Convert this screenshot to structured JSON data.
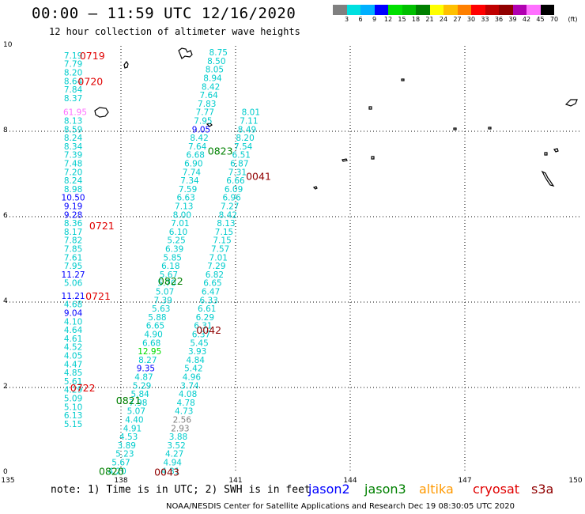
{
  "header": {
    "title": "00:00 – 11:59 UTC 12/16/2020",
    "subtitle": "12 hour collection of altimeter wave heights"
  },
  "colorbar": {
    "colors": [
      "#808080",
      "#00e0e0",
      "#00b0ff",
      "#0000ff",
      "#00e000",
      "#00c000",
      "#008000",
      "#ffff00",
      "#ffc000",
      "#ff8000",
      "#ff0000",
      "#c00000",
      "#900000",
      "#b000b0",
      "#ff70ff",
      "#000000"
    ],
    "labels": [
      "3",
      "6",
      "9",
      "12",
      "15",
      "18",
      "21",
      "24",
      "27",
      "30",
      "33",
      "36",
      "39",
      "42",
      "45",
      "70",
      "(ft)"
    ]
  },
  "axes": {
    "y_ticks": [
      "10",
      "8",
      "6",
      "4",
      "2",
      "0"
    ],
    "x_ticks": [
      "135",
      "138",
      "141",
      "144",
      "147",
      "150"
    ]
  },
  "chart_data": {
    "type": "scatter",
    "xlim": [
      135,
      150
    ],
    "ylim": [
      0,
      10
    ],
    "grid": true,
    "points": [
      {
        "x": 136.75,
        "y": 9.78,
        "v": "7.19",
        "c": "#00cccc"
      },
      {
        "x": 136.75,
        "y": 9.58,
        "v": "7.79",
        "c": "#00cccc"
      },
      {
        "x": 136.75,
        "y": 9.38,
        "v": "8.20",
        "c": "#00cccc"
      },
      {
        "x": 136.75,
        "y": 9.18,
        "v": "8.64",
        "c": "#00cccc"
      },
      {
        "x": 136.75,
        "y": 8.98,
        "v": "7.84",
        "c": "#00cccc"
      },
      {
        "x": 136.75,
        "y": 8.78,
        "v": "8.37",
        "c": "#00cccc"
      },
      {
        "x": 136.8,
        "y": 8.45,
        "v": "61.95",
        "c": "#ff70ff"
      },
      {
        "x": 136.75,
        "y": 8.25,
        "v": "8.13",
        "c": "#00cccc"
      },
      {
        "x": 136.75,
        "y": 8.05,
        "v": "8.59",
        "c": "#00cccc"
      },
      {
        "x": 136.75,
        "y": 7.85,
        "v": "8.24",
        "c": "#00cccc"
      },
      {
        "x": 136.75,
        "y": 7.65,
        "v": "8.34",
        "c": "#00cccc"
      },
      {
        "x": 136.75,
        "y": 7.45,
        "v": "7.39",
        "c": "#00cccc"
      },
      {
        "x": 136.75,
        "y": 7.25,
        "v": "7.48",
        "c": "#00cccc"
      },
      {
        "x": 136.75,
        "y": 7.05,
        "v": "7.20",
        "c": "#00cccc"
      },
      {
        "x": 136.75,
        "y": 6.85,
        "v": "8.24",
        "c": "#00cccc"
      },
      {
        "x": 136.75,
        "y": 6.65,
        "v": "8.98",
        "c": "#00cccc"
      },
      {
        "x": 136.75,
        "y": 6.45,
        "v": "10.50",
        "c": "#0000ff"
      },
      {
        "x": 136.75,
        "y": 6.25,
        "v": "9.19",
        "c": "#0000ff"
      },
      {
        "x": 136.75,
        "y": 6.05,
        "v": "9.28",
        "c": "#0000ff"
      },
      {
        "x": 136.75,
        "y": 5.85,
        "v": "8.36",
        "c": "#00cccc"
      },
      {
        "x": 136.75,
        "y": 5.65,
        "v": "8.17",
        "c": "#00cccc"
      },
      {
        "x": 136.75,
        "y": 5.45,
        "v": "7.82",
        "c": "#00cccc"
      },
      {
        "x": 136.75,
        "y": 5.25,
        "v": "7.85",
        "c": "#00cccc"
      },
      {
        "x": 136.75,
        "y": 5.05,
        "v": "7.61",
        "c": "#00cccc"
      },
      {
        "x": 136.75,
        "y": 4.85,
        "v": "7.95",
        "c": "#00cccc"
      },
      {
        "x": 136.75,
        "y": 4.65,
        "v": "11.27",
        "c": "#0000ff"
      },
      {
        "x": 136.75,
        "y": 4.45,
        "v": "5.06",
        "c": "#00cccc"
      },
      {
        "x": 136.75,
        "y": 4.15,
        "v": "11.21",
        "c": "#0000ff"
      },
      {
        "x": 136.75,
        "y": 3.95,
        "v": "4.68",
        "c": "#00cccc"
      },
      {
        "x": 136.75,
        "y": 3.75,
        "v": "9.04",
        "c": "#0000ff"
      },
      {
        "x": 136.75,
        "y": 3.55,
        "v": "4.10",
        "c": "#00cccc"
      },
      {
        "x": 136.75,
        "y": 3.35,
        "v": "4.64",
        "c": "#00cccc"
      },
      {
        "x": 136.75,
        "y": 3.15,
        "v": "4.61",
        "c": "#00cccc"
      },
      {
        "x": 136.75,
        "y": 2.95,
        "v": "4.52",
        "c": "#00cccc"
      },
      {
        "x": 136.75,
        "y": 2.75,
        "v": "4.05",
        "c": "#00cccc"
      },
      {
        "x": 136.75,
        "y": 2.55,
        "v": "4.47",
        "c": "#00cccc"
      },
      {
        "x": 136.75,
        "y": 2.35,
        "v": "4.85",
        "c": "#00cccc"
      },
      {
        "x": 136.75,
        "y": 2.15,
        "v": "5.61",
        "c": "#00cccc"
      },
      {
        "x": 136.75,
        "y": 1.95,
        "v": "4.29",
        "c": "#00cccc"
      },
      {
        "x": 136.75,
        "y": 1.75,
        "v": "5.09",
        "c": "#00cccc"
      },
      {
        "x": 136.75,
        "y": 1.55,
        "v": "5.10",
        "c": "#00cccc"
      },
      {
        "x": 136.75,
        "y": 1.35,
        "v": "6.13",
        "c": "#00cccc"
      },
      {
        "x": 136.75,
        "y": 1.15,
        "v": "5.15",
        "c": "#00cccc"
      },
      {
        "x": 137.9,
        "y": 0.05,
        "v": "4.20",
        "c": "#00cccc"
      },
      {
        "x": 138.0,
        "y": 0.25,
        "v": "5.67",
        "c": "#00cccc"
      },
      {
        "x": 138.1,
        "y": 0.45,
        "v": "5.23",
        "c": "#00cccc"
      },
      {
        "x": 138.15,
        "y": 0.65,
        "v": "3.89",
        "c": "#00cccc"
      },
      {
        "x": 138.2,
        "y": 0.85,
        "v": "4.53",
        "c": "#00cccc"
      },
      {
        "x": 138.3,
        "y": 1.05,
        "v": "4.91",
        "c": "#00cccc"
      },
      {
        "x": 138.35,
        "y": 1.25,
        "v": "4.40",
        "c": "#00cccc"
      },
      {
        "x": 138.4,
        "y": 1.45,
        "v": "5.07",
        "c": "#00cccc"
      },
      {
        "x": 138.45,
        "y": 1.65,
        "v": "7.98",
        "c": "#00cccc"
      },
      {
        "x": 138.5,
        "y": 1.85,
        "v": "5.84",
        "c": "#00cccc"
      },
      {
        "x": 138.55,
        "y": 2.05,
        "v": "5.29",
        "c": "#00cccc"
      },
      {
        "x": 138.6,
        "y": 2.25,
        "v": "4.87",
        "c": "#00cccc"
      },
      {
        "x": 138.65,
        "y": 2.45,
        "v": "9.35",
        "c": "#0000ff"
      },
      {
        "x": 138.7,
        "y": 2.65,
        "v": "8.27",
        "c": "#00cccc"
      },
      {
        "x": 138.75,
        "y": 2.85,
        "v": "12.95",
        "c": "#00dd00"
      },
      {
        "x": 138.8,
        "y": 3.05,
        "v": "6.68",
        "c": "#00cccc"
      },
      {
        "x": 138.85,
        "y": 3.25,
        "v": "4.90",
        "c": "#00cccc"
      },
      {
        "x": 138.9,
        "y": 3.45,
        "v": "6.65",
        "c": "#00cccc"
      },
      {
        "x": 138.95,
        "y": 3.65,
        "v": "5.88",
        "c": "#00cccc"
      },
      {
        "x": 139.05,
        "y": 3.85,
        "v": "5.63",
        "c": "#00cccc"
      },
      {
        "x": 139.1,
        "y": 4.05,
        "v": "7.39",
        "c": "#00cccc"
      },
      {
        "x": 139.15,
        "y": 4.25,
        "v": "5.07",
        "c": "#00cccc"
      },
      {
        "x": 139.2,
        "y": 4.45,
        "v": "5.70",
        "c": "#00cccc"
      },
      {
        "x": 139.25,
        "y": 4.65,
        "v": "5.67",
        "c": "#00cccc"
      },
      {
        "x": 139.3,
        "y": 4.85,
        "v": "6.18",
        "c": "#00cccc"
      },
      {
        "x": 139.35,
        "y": 5.05,
        "v": "5.85",
        "c": "#00cccc"
      },
      {
        "x": 139.4,
        "y": 5.25,
        "v": "6.39",
        "c": "#00cccc"
      },
      {
        "x": 139.45,
        "y": 5.45,
        "v": "5.25",
        "c": "#00cccc"
      },
      {
        "x": 139.5,
        "y": 5.65,
        "v": "6.10",
        "c": "#00cccc"
      },
      {
        "x": 139.55,
        "y": 5.85,
        "v": "7.01",
        "c": "#00cccc"
      },
      {
        "x": 139.6,
        "y": 6.05,
        "v": "8.00",
        "c": "#00cccc"
      },
      {
        "x": 139.65,
        "y": 6.25,
        "v": "7.13",
        "c": "#00cccc"
      },
      {
        "x": 139.7,
        "y": 6.45,
        "v": "6.63",
        "c": "#00cccc"
      },
      {
        "x": 139.75,
        "y": 6.65,
        "v": "7.59",
        "c": "#00cccc"
      },
      {
        "x": 139.8,
        "y": 6.85,
        "v": "7.34",
        "c": "#00cccc"
      },
      {
        "x": 139.85,
        "y": 7.05,
        "v": "7.74",
        "c": "#00cccc"
      },
      {
        "x": 139.9,
        "y": 7.25,
        "v": "6.90",
        "c": "#00cccc"
      },
      {
        "x": 139.95,
        "y": 7.45,
        "v": "6.68",
        "c": "#00cccc"
      },
      {
        "x": 140.0,
        "y": 7.65,
        "v": "7.64",
        "c": "#00cccc"
      },
      {
        "x": 140.05,
        "y": 7.85,
        "v": "8.42",
        "c": "#00cccc"
      },
      {
        "x": 140.1,
        "y": 8.05,
        "v": "9.05",
        "c": "#0000ff"
      },
      {
        "x": 140.15,
        "y": 8.25,
        "v": "7.95",
        "c": "#00cccc"
      },
      {
        "x": 140.2,
        "y": 8.45,
        "v": "7.77",
        "c": "#00cccc"
      },
      {
        "x": 140.25,
        "y": 8.65,
        "v": "7.83",
        "c": "#00cccc"
      },
      {
        "x": 140.3,
        "y": 8.85,
        "v": "7.64",
        "c": "#00cccc"
      },
      {
        "x": 140.35,
        "y": 9.05,
        "v": "8.42",
        "c": "#00cccc"
      },
      {
        "x": 140.4,
        "y": 9.25,
        "v": "8.94",
        "c": "#00cccc"
      },
      {
        "x": 140.45,
        "y": 9.45,
        "v": "8.05",
        "c": "#00cccc"
      },
      {
        "x": 140.5,
        "y": 9.65,
        "v": "8.50",
        "c": "#00cccc"
      },
      {
        "x": 140.55,
        "y": 9.85,
        "v": "8.75",
        "c": "#00cccc"
      },
      {
        "x": 139.3,
        "y": 0.05,
        "v": "4.31",
        "c": "#00cccc"
      },
      {
        "x": 139.35,
        "y": 0.25,
        "v": "4.94",
        "c": "#00cccc"
      },
      {
        "x": 139.4,
        "y": 0.45,
        "v": "4.27",
        "c": "#00cccc"
      },
      {
        "x": 139.45,
        "y": 0.65,
        "v": "3.52",
        "c": "#00cccc"
      },
      {
        "x": 139.5,
        "y": 0.85,
        "v": "3.88",
        "c": "#00cccc"
      },
      {
        "x": 139.55,
        "y": 1.05,
        "v": "2.93",
        "c": "#808080"
      },
      {
        "x": 139.6,
        "y": 1.25,
        "v": "2.56",
        "c": "#808080"
      },
      {
        "x": 139.65,
        "y": 1.45,
        "v": "4.73",
        "c": "#00cccc"
      },
      {
        "x": 139.7,
        "y": 1.65,
        "v": "4.78",
        "c": "#00cccc"
      },
      {
        "x": 139.75,
        "y": 1.85,
        "v": "4.08",
        "c": "#00cccc"
      },
      {
        "x": 139.8,
        "y": 2.05,
        "v": "3.74",
        "c": "#00cccc"
      },
      {
        "x": 139.85,
        "y": 2.25,
        "v": "4.96",
        "c": "#00cccc"
      },
      {
        "x": 139.9,
        "y": 2.45,
        "v": "5.42",
        "c": "#00cccc"
      },
      {
        "x": 139.95,
        "y": 2.65,
        "v": "4.84",
        "c": "#00cccc"
      },
      {
        "x": 140.0,
        "y": 2.85,
        "v": "3.93",
        "c": "#00cccc"
      },
      {
        "x": 140.05,
        "y": 3.05,
        "v": "5.45",
        "c": "#00cccc"
      },
      {
        "x": 140.1,
        "y": 3.25,
        "v": "6.37",
        "c": "#00cccc"
      },
      {
        "x": 140.15,
        "y": 3.45,
        "v": "6.31",
        "c": "#00cccc"
      },
      {
        "x": 140.2,
        "y": 3.65,
        "v": "6.29",
        "c": "#00cccc"
      },
      {
        "x": 140.25,
        "y": 3.85,
        "v": "6.61",
        "c": "#00cccc"
      },
      {
        "x": 140.3,
        "y": 4.05,
        "v": "6.33",
        "c": "#00cccc"
      },
      {
        "x": 140.35,
        "y": 4.25,
        "v": "6.47",
        "c": "#00cccc"
      },
      {
        "x": 140.4,
        "y": 4.45,
        "v": "6.65",
        "c": "#00cccc"
      },
      {
        "x": 140.45,
        "y": 4.65,
        "v": "6.82",
        "c": "#00cccc"
      },
      {
        "x": 140.5,
        "y": 4.85,
        "v": "7.29",
        "c": "#00cccc"
      },
      {
        "x": 140.55,
        "y": 5.05,
        "v": "7.01",
        "c": "#00cccc"
      },
      {
        "x": 140.6,
        "y": 5.25,
        "v": "7.57",
        "c": "#00cccc"
      },
      {
        "x": 140.65,
        "y": 5.45,
        "v": "7.15",
        "c": "#00cccc"
      },
      {
        "x": 140.7,
        "y": 5.65,
        "v": "7.15",
        "c": "#00cccc"
      },
      {
        "x": 140.75,
        "y": 5.85,
        "v": "8.13",
        "c": "#00cccc"
      },
      {
        "x": 140.8,
        "y": 6.05,
        "v": "8.42",
        "c": "#00cccc"
      },
      {
        "x": 140.85,
        "y": 6.25,
        "v": "7.27",
        "c": "#00cccc"
      },
      {
        "x": 140.9,
        "y": 6.45,
        "v": "6.96",
        "c": "#00cccc"
      },
      {
        "x": 140.95,
        "y": 6.65,
        "v": "6.09",
        "c": "#00cccc"
      },
      {
        "x": 141.0,
        "y": 6.85,
        "v": "6.66",
        "c": "#00cccc"
      },
      {
        "x": 141.05,
        "y": 7.05,
        "v": "7.31",
        "c": "#00cccc"
      },
      {
        "x": 141.1,
        "y": 7.25,
        "v": "6.87",
        "c": "#00cccc"
      },
      {
        "x": 141.15,
        "y": 7.45,
        "v": "6.51",
        "c": "#00cccc"
      },
      {
        "x": 141.2,
        "y": 7.65,
        "v": "7.54",
        "c": "#00cccc"
      },
      {
        "x": 141.25,
        "y": 7.85,
        "v": "8.20",
        "c": "#00cccc"
      },
      {
        "x": 141.3,
        "y": 8.05,
        "v": "8.49",
        "c": "#00cccc"
      },
      {
        "x": 141.35,
        "y": 8.25,
        "v": "7.11",
        "c": "#00cccc"
      },
      {
        "x": 141.4,
        "y": 8.45,
        "v": "8.01",
        "c": "#00cccc"
      }
    ],
    "time_labels": [
      {
        "x": 137.25,
        "y": 9.78,
        "v": "0719",
        "c": "#e00000"
      },
      {
        "x": 137.2,
        "y": 9.18,
        "v": "0720",
        "c": "#e00000"
      },
      {
        "x": 137.5,
        "y": 5.8,
        "v": "0721",
        "c": "#e00000"
      },
      {
        "x": 137.4,
        "y": 4.15,
        "v": "0721",
        "c": "#e00000"
      },
      {
        "x": 137.0,
        "y": 2.0,
        "v": "0722",
        "c": "#e00000"
      },
      {
        "x": 140.6,
        "y": 7.55,
        "v": "0823",
        "c": "#008000"
      },
      {
        "x": 139.3,
        "y": 4.5,
        "v": "0822",
        "c": "#008000"
      },
      {
        "x": 138.2,
        "y": 1.7,
        "v": "0821",
        "c": "#008000"
      },
      {
        "x": 137.75,
        "y": 0.05,
        "v": "0820",
        "c": "#008000"
      },
      {
        "x": 141.6,
        "y": 6.95,
        "v": "0041",
        "c": "#900000"
      },
      {
        "x": 140.3,
        "y": 3.35,
        "v": "0042",
        "c": "#900000"
      },
      {
        "x": 139.2,
        "y": 0.03,
        "v": "0043",
        "c": "#900000"
      }
    ]
  },
  "footer": {
    "note": "note: 1) Time is in UTC; 2) SWH is in feet",
    "credit": "NOAA/NESDIS Center for Satellite Applications and Research   Dec 19 08:30:05 UTC 2020",
    "legend": [
      {
        "label": "jason2",
        "color": "#0000ff"
      },
      {
        "label": "jason3",
        "color": "#008000"
      },
      {
        "label": "altika",
        "color": "#ff9900"
      },
      {
        "label": "cryosat",
        "color": "#e00000"
      },
      {
        "label": "s3a",
        "color": "#900000"
      }
    ]
  }
}
